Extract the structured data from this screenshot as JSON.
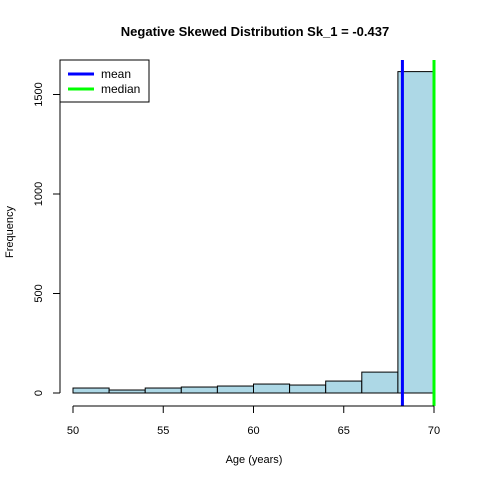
{
  "chart_data": {
    "type": "bar",
    "title": "Negative Skewed Distribution Sk_1 = -0.437",
    "xlabel": "Age (years)",
    "ylabel": "Frequency",
    "xlim": [
      50,
      70
    ],
    "ylim": [
      0,
      1650
    ],
    "x_ticks": [
      50,
      55,
      60,
      65,
      70
    ],
    "y_ticks": [
      0,
      500,
      1000,
      1500
    ],
    "bins": [
      {
        "from": 50,
        "to": 52,
        "count": 25
      },
      {
        "from": 52,
        "to": 54,
        "count": 15
      },
      {
        "from": 54,
        "to": 56,
        "count": 25
      },
      {
        "from": 56,
        "to": 58,
        "count": 30
      },
      {
        "from": 58,
        "to": 60,
        "count": 35
      },
      {
        "from": 60,
        "to": 62,
        "count": 45
      },
      {
        "from": 62,
        "to": 64,
        "count": 40
      },
      {
        "from": 64,
        "to": 66,
        "count": 60
      },
      {
        "from": 66,
        "to": 68,
        "count": 105
      },
      {
        "from": 68,
        "to": 70,
        "count": 1615
      }
    ],
    "bar_fill": "#add8e6",
    "mean": 68.25,
    "median": 70,
    "mean_color": "#0000ff",
    "median_color": "#00ff00",
    "legend": [
      {
        "label": "mean",
        "color": "#0000ff"
      },
      {
        "label": "median",
        "color": "#00ff00"
      }
    ],
    "legend_position": "top-left",
    "grid": false
  }
}
